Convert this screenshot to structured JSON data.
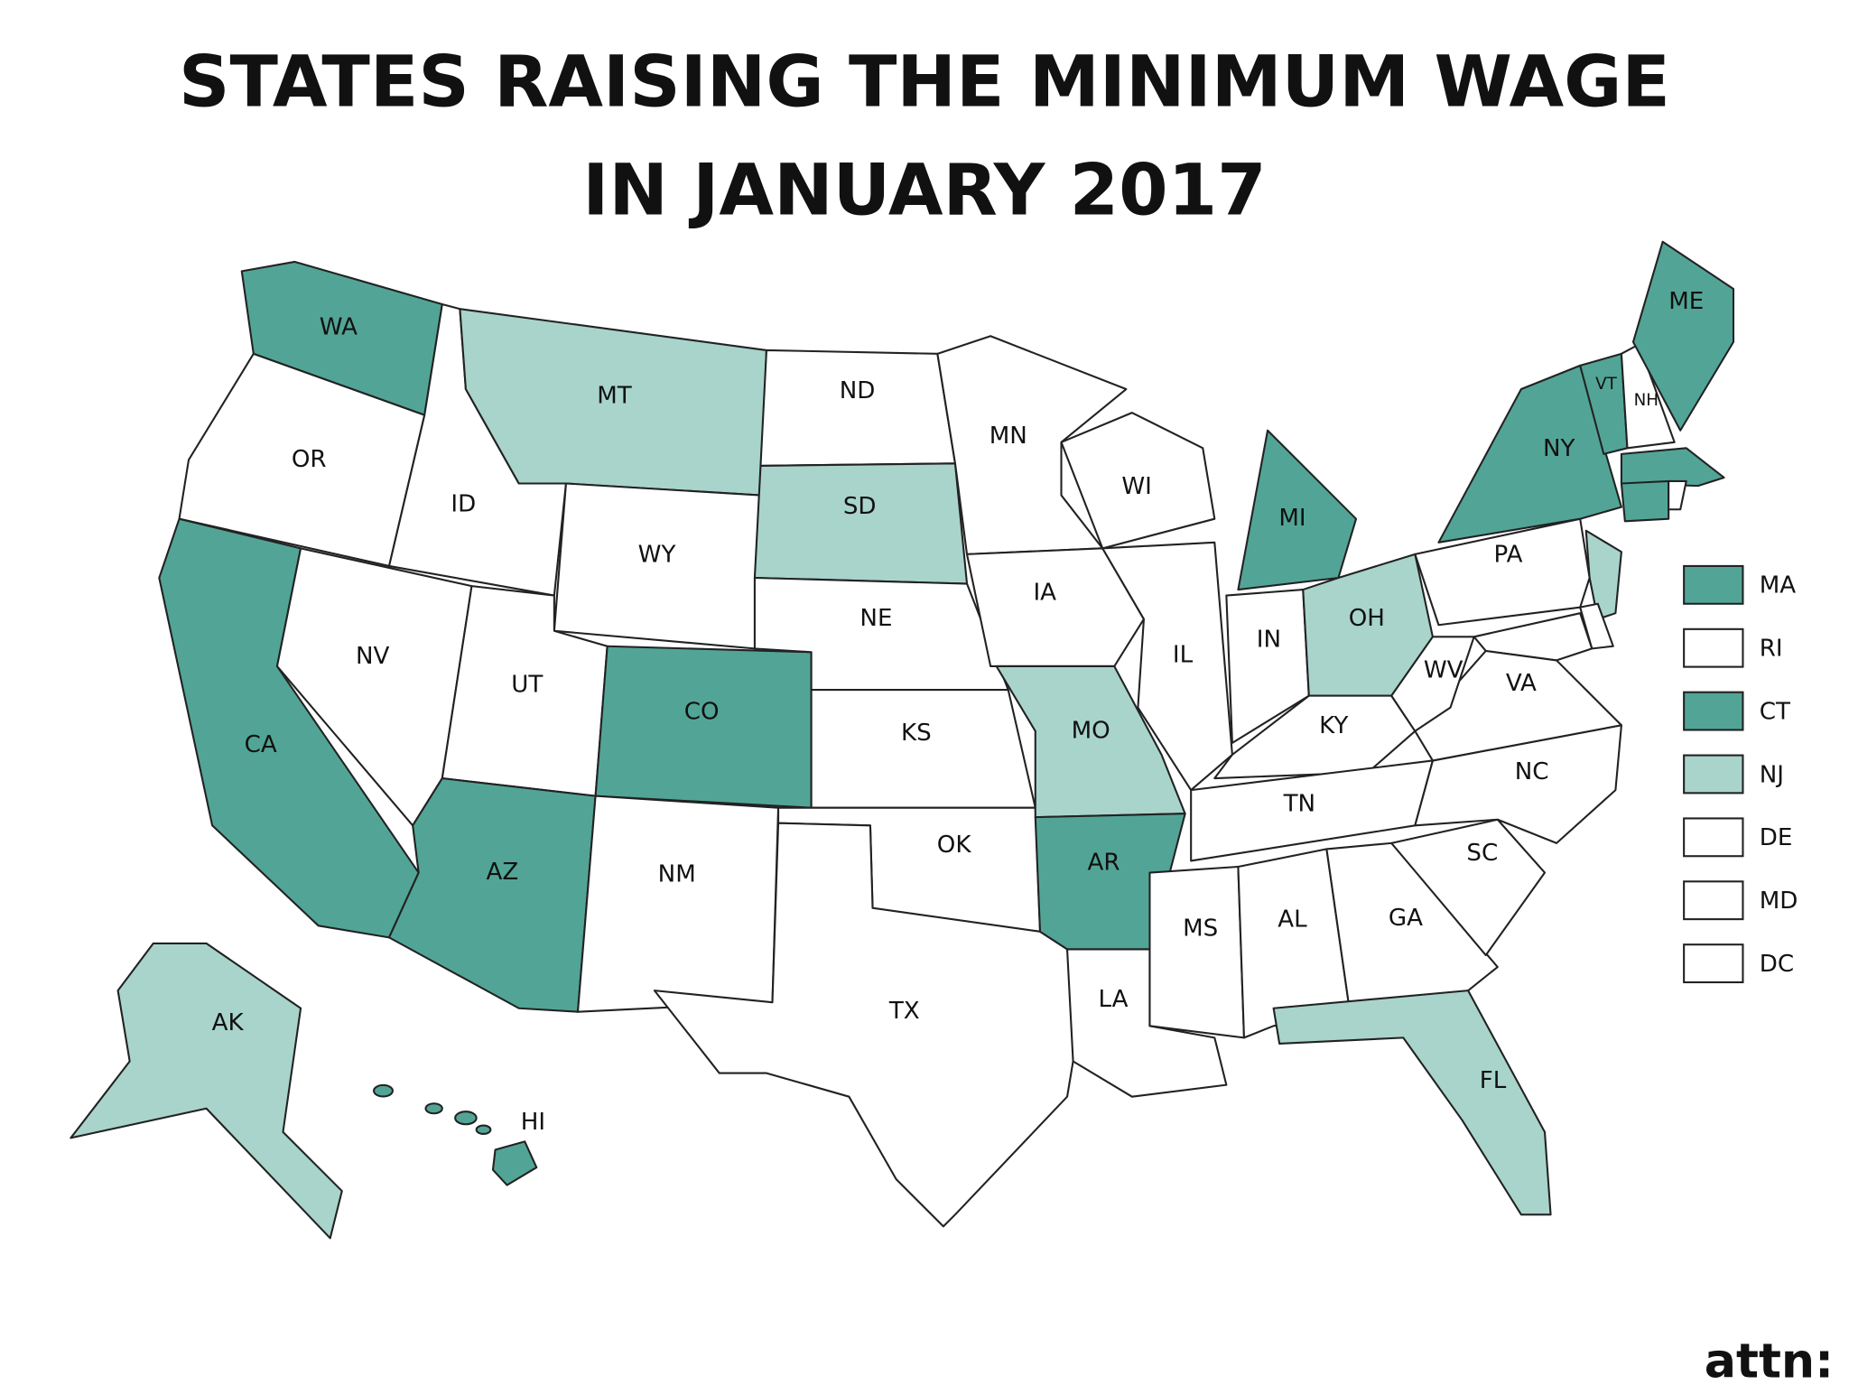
{
  "title": [
    "STATES RAISING THE MINIMUM WAGE",
    "IN JANUARY 2017"
  ],
  "states": [
    {
      "label": "WA",
      "color": "#52a596"
    },
    {
      "label": "OR",
      "color": "#ffffff"
    },
    {
      "label": "CA",
      "color": "#52a596"
    },
    {
      "label": "NV",
      "color": "#ffffff"
    },
    {
      "label": "ID",
      "color": "#ffffff"
    },
    {
      "label": "MT",
      "color": "#a8d4cb"
    },
    {
      "label": "WY",
      "color": "#ffffff"
    },
    {
      "label": "UT",
      "color": "#ffffff"
    },
    {
      "label": "AZ",
      "color": "#52a596"
    },
    {
      "label": "CO",
      "color": "#52a596"
    },
    {
      "label": "NM",
      "color": "#ffffff"
    },
    {
      "label": "ND",
      "color": "#ffffff"
    },
    {
      "label": "SD",
      "color": "#a8d4cb"
    },
    {
      "label": "NE",
      "color": "#ffffff"
    },
    {
      "label": "KS",
      "color": "#ffffff"
    },
    {
      "label": "OK",
      "color": "#ffffff"
    },
    {
      "label": "TX",
      "color": "#ffffff"
    },
    {
      "label": "MN",
      "color": "#ffffff"
    },
    {
      "label": "IA",
      "color": "#ffffff"
    },
    {
      "label": "MO",
      "color": "#a8d4cb"
    },
    {
      "label": "AR",
      "color": "#52a596"
    },
    {
      "label": "LA",
      "color": "#ffffff"
    },
    {
      "label": "WI",
      "color": "#ffffff"
    },
    {
      "label": "IL",
      "color": "#ffffff"
    },
    {
      "label": "MI",
      "color": "#52a596"
    },
    {
      "label": "IN",
      "color": "#ffffff"
    },
    {
      "label": "OH",
      "color": "#a8d4cb"
    },
    {
      "label": "KY",
      "color": "#ffffff"
    },
    {
      "label": "TN",
      "color": "#ffffff"
    },
    {
      "label": "MS",
      "color": "#ffffff"
    },
    {
      "label": "AL",
      "color": "#ffffff"
    },
    {
      "label": "GA",
      "color": "#ffffff"
    },
    {
      "label": "SC",
      "color": "#ffffff"
    },
    {
      "label": "NC",
      "color": "#ffffff"
    },
    {
      "label": "FL",
      "color": "#a8d4cb"
    },
    {
      "label": "VA",
      "color": "#ffffff"
    },
    {
      "label": "WV",
      "color": "#ffffff"
    },
    {
      "label": "PA",
      "color": "#ffffff"
    },
    {
      "label": "NY",
      "color": "#52a596"
    },
    {
      "label": "VT",
      "color": "#52a596"
    },
    {
      "label": "NH",
      "color": "#ffffff"
    },
    {
      "label": "ME",
      "color": "#52a596"
    },
    {
      "label": "AK",
      "color": "#a8d4cb"
    },
    {
      "label": "HI",
      "color": "#52a596"
    }
  ],
  "legend": [
    {
      "label": "MA",
      "color": "#52a596"
    },
    {
      "label": "RI",
      "color": "#ffffff"
    },
    {
      "label": "CT",
      "color": "#52a596"
    },
    {
      "label": "NJ",
      "color": "#a8d4cb"
    },
    {
      "label": "DE",
      "color": "#ffffff"
    },
    {
      "label": "MD",
      "color": "#ffffff"
    },
    {
      "label": "DC",
      "color": "#ffffff"
    }
  ],
  "logo": "attn:"
}
